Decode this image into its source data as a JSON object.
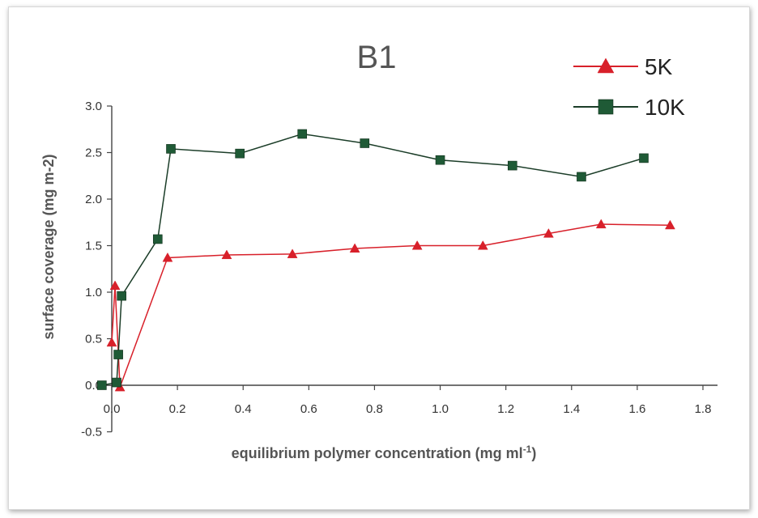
{
  "chart_data": {
    "type": "line",
    "title": "B1",
    "xlabel": "equilibrium  polymer  concentration  (mg ml",
    "xlabel_sup": "-1",
    "xlabel_end": ")",
    "ylabel": "surface coverage (mg m-2)",
    "xlim": [
      0,
      1.8
    ],
    "ylim": [
      -0.5,
      3.0
    ],
    "x_ticks": [
      "0.0",
      "0.2",
      "0.4",
      "0.6",
      "0.8",
      "1.0",
      "1.2",
      "1.4",
      "1.6",
      "1.8"
    ],
    "y_ticks": [
      "3.0",
      "2.5",
      "2.0",
      "1.5",
      "1.0",
      "0.5",
      "0.0",
      "-0.5"
    ],
    "legend_position": "top-right",
    "grid": false,
    "series": [
      {
        "name": "5K",
        "color": "#d8202a",
        "marker": "triangle",
        "x": [
          0.0,
          0.01,
          0.025,
          0.17,
          0.35,
          0.55,
          0.74,
          0.93,
          1.13,
          1.33,
          1.49,
          1.7
        ],
        "y": [
          0.46,
          1.07,
          -0.02,
          1.37,
          1.4,
          1.41,
          1.47,
          1.5,
          1.5,
          1.63,
          1.73,
          1.72
        ]
      },
      {
        "name": "10K",
        "color": "#1f5a36",
        "marker": "square",
        "x": [
          -0.03,
          0.015,
          0.02,
          0.03,
          0.14,
          0.18,
          0.39,
          0.58,
          0.77,
          1.0,
          1.22,
          1.43,
          1.62
        ],
        "y": [
          0.0,
          0.03,
          0.33,
          0.96,
          1.57,
          2.54,
          2.49,
          2.7,
          2.6,
          2.42,
          2.36,
          2.24,
          2.44
        ]
      }
    ]
  }
}
